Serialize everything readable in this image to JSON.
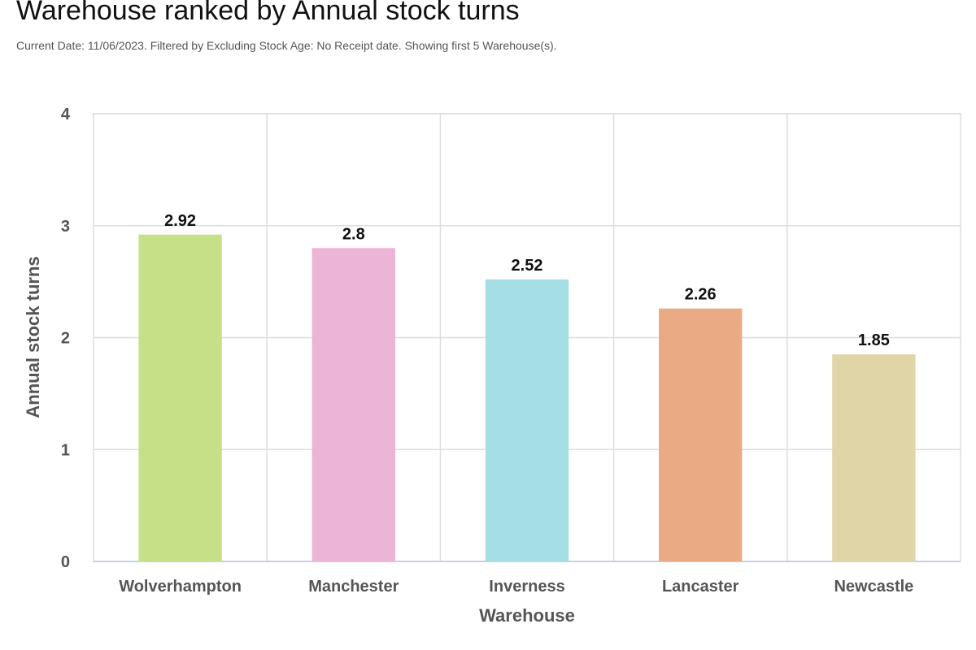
{
  "header": {
    "title": "Warehouse ranked by Annual stock turns",
    "subtitle": "Current Date: 11/06/2023. Filtered by Excluding Stock Age: No Receipt date. Showing first 5 Warehouse(s)."
  },
  "chart_data": {
    "type": "bar",
    "title": "Warehouse ranked by Annual stock turns",
    "xlabel": "Warehouse",
    "ylabel": "Annual stock turns",
    "categories": [
      "Wolverhampton",
      "Manchester",
      "Inverness",
      "Lancaster",
      "Newcastle"
    ],
    "values": [
      2.92,
      2.8,
      2.52,
      2.26,
      1.85
    ],
    "value_labels": [
      "2.92",
      "2.8",
      "2.52",
      "2.26",
      "1.85"
    ],
    "colors": [
      "#c5e087",
      "#ecb4d6",
      "#a5dfe5",
      "#eaab84",
      "#e0d5a6"
    ],
    "ylim": [
      0,
      4
    ],
    "yticks": [
      "0",
      "1",
      "2",
      "3",
      "4"
    ],
    "grid": true,
    "legend": "none"
  }
}
